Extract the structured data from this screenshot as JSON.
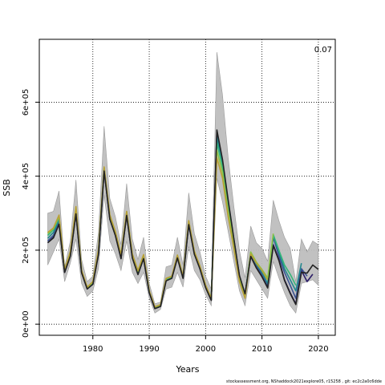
{
  "chart_data": {
    "type": "line",
    "title": "",
    "xlabel": "Years",
    "ylabel": "SSB",
    "annotation": "0.07",
    "xlim": [
      1970.5,
      2023
    ],
    "ylim": [
      -30000,
      770000
    ],
    "x_ticks": [
      1980,
      1990,
      2000,
      2010,
      2020
    ],
    "y_ticks": [
      0,
      200000,
      400000,
      600000
    ],
    "y_tick_labels": [
      "0e+00",
      "2e+05",
      "4e+05",
      "6e+05"
    ],
    "grid": true,
    "band": {
      "color": "#bebebe",
      "x": [
        1972,
        1973,
        1974,
        1975,
        1976,
        1977,
        1978,
        1979,
        1980,
        1981,
        1982,
        1983,
        1984,
        1985,
        1986,
        1987,
        1988,
        1989,
        1990,
        1991,
        1992,
        1993,
        1994,
        1995,
        1996,
        1997,
        1998,
        1999,
        2000,
        2001,
        2002,
        2003,
        2004,
        2005,
        2006,
        2007,
        2008,
        2009,
        2010,
        2011,
        2012,
        2013,
        2014,
        2015,
        2016,
        2017,
        2018,
        2019,
        2020
      ],
      "upper": [
        300000,
        305000,
        360000,
        155000,
        225000,
        390000,
        175000,
        115000,
        130000,
        250000,
        535000,
        340000,
        290000,
        215000,
        380000,
        230000,
        175000,
        235000,
        110000,
        55000,
        60000,
        155000,
        160000,
        235000,
        160000,
        355000,
        245000,
        195000,
        130000,
        95000,
        735000,
        620000,
        450000,
        320000,
        200000,
        125000,
        265000,
        220000,
        205000,
        170000,
        335000,
        280000,
        235000,
        205000,
        115000,
        230000,
        195000,
        225000,
        215000
      ],
      "lower": [
        160000,
        195000,
        230000,
        115000,
        165000,
        230000,
        110000,
        75000,
        90000,
        150000,
        350000,
        225000,
        190000,
        145000,
        225000,
        140000,
        110000,
        140000,
        70000,
        30000,
        40000,
        95000,
        100000,
        140000,
        100000,
        210000,
        145000,
        120000,
        80000,
        50000,
        395000,
        330000,
        250000,
        170000,
        90000,
        50000,
        145000,
        120000,
        95000,
        70000,
        170000,
        125000,
        85000,
        50000,
        30000,
        110000,
        115000,
        120000,
        105000
      ]
    },
    "series": [
      {
        "color": "#2a1c67",
        "x": [
          1972,
          1973,
          1974,
          1975,
          1976,
          1977,
          1978,
          1979,
          1980,
          1981,
          1982,
          1983,
          1984,
          1985,
          1986,
          1987,
          1988,
          1989,
          1990,
          1991,
          1992,
          1993,
          1994,
          1995,
          1996,
          1997,
          1998,
          1999,
          2000,
          2001,
          2002,
          2003,
          2004,
          2005,
          2006,
          2007,
          2008,
          2009,
          2010,
          2011,
          2012,
          2013,
          2014,
          2015,
          2016,
          2017,
          2018,
          2019
        ],
        "values": [
          220000,
          235000,
          275000,
          140000,
          185000,
          300000,
          140000,
          95000,
          108000,
          190000,
          415000,
          285000,
          240000,
          178000,
          295000,
          180000,
          135000,
          178000,
          85000,
          42000,
          48000,
          118000,
          125000,
          180000,
          125000,
          270000,
          190000,
          150000,
          100000,
          65000,
          520000,
          440000,
          330000,
          230000,
          130000,
          80000,
          185000,
          155000,
          130000,
          100000,
          215000,
          175000,
          120000,
          85000,
          55000,
          145000,
          115000,
          135000
        ]
      },
      {
        "color": "#3b5291",
        "x": [
          1972,
          1973,
          1974,
          1975,
          1976,
          1977,
          1978,
          1979,
          1980,
          1981,
          1982,
          1983,
          1984,
          1985,
          1986,
          1987,
          1988,
          1989,
          1990,
          1991,
          1992,
          1993,
          1994,
          1995,
          1996,
          1997,
          1998,
          1999,
          2000,
          2001,
          2002,
          2003,
          2004,
          2005,
          2006,
          2007,
          2008,
          2009,
          2010,
          2011,
          2012,
          2013,
          2014,
          2015,
          2016,
          2017,
          2018
        ],
        "values": [
          225000,
          240000,
          278000,
          142000,
          188000,
          303000,
          142000,
          96000,
          110000,
          192000,
          418000,
          288000,
          242000,
          180000,
          297000,
          182000,
          137000,
          180000,
          86000,
          43000,
          49000,
          120000,
          126000,
          182000,
          126000,
          272000,
          192000,
          152000,
          102000,
          66000,
          505000,
          435000,
          325000,
          228000,
          130000,
          80000,
          188000,
          158000,
          135000,
          105000,
          235000,
          185000,
          140000,
          105000,
          70000,
          150000,
          130000
        ]
      },
      {
        "color": "#22888e",
        "x": [
          1972,
          1973,
          1974,
          1975,
          1976,
          1977,
          1978,
          1979,
          1980,
          1981,
          1982,
          1983,
          1984,
          1985,
          1986,
          1987,
          1988,
          1989,
          1990,
          1991,
          1992,
          1993,
          1994,
          1995,
          1996,
          1997,
          1998,
          1999,
          2000,
          2001,
          2002,
          2003,
          2004,
          2005,
          2006,
          2007,
          2008,
          2009,
          2010,
          2011,
          2012,
          2013,
          2014,
          2015,
          2016,
          2017
        ],
        "values": [
          232000,
          248000,
          282000,
          144000,
          190000,
          306000,
          143000,
          97000,
          112000,
          195000,
          420000,
          290000,
          245000,
          182000,
          300000,
          184000,
          139000,
          182000,
          87000,
          44000,
          50000,
          121000,
          127000,
          184000,
          127000,
          275000,
          194000,
          154000,
          103000,
          67000,
          505000,
          430000,
          320000,
          225000,
          128000,
          78000,
          192000,
          162000,
          140000,
          110000,
          240000,
          195000,
          150000,
          120000,
          90000,
          165000
        ]
      },
      {
        "color": "#35b779",
        "x": [
          1972,
          1973,
          1974,
          1975,
          1976,
          1977,
          1978,
          1979,
          1980,
          1981,
          1982,
          1983,
          1984,
          1985,
          1986,
          1987,
          1988,
          1989,
          1990,
          1991,
          1992,
          1993,
          1994,
          1995,
          1996,
          1997,
          1998,
          1999,
          2000,
          2001,
          2002,
          2003,
          2004,
          2005,
          2006,
          2007,
          2008,
          2009,
          2010,
          2011,
          2012,
          2013,
          2014,
          2015,
          2016
        ],
        "values": [
          240000,
          255000,
          288000,
          145000,
          193000,
          310000,
          144000,
          98000,
          113000,
          198000,
          422000,
          292000,
          247000,
          184000,
          302000,
          186000,
          141000,
          184000,
          88000,
          45000,
          51000,
          122000,
          128000,
          185000,
          128000,
          276000,
          195000,
          155000,
          104000,
          68000,
          490000,
          425000,
          315000,
          222000,
          125000,
          76000,
          194000,
          165000,
          145000,
          120000,
          242000,
          200000,
          160000,
          135000,
          105000
        ]
      },
      {
        "color": "#8fc244",
        "x": [
          1972,
          1973,
          1974,
          1975,
          1976,
          1977,
          1978,
          1979,
          1980,
          1981,
          1982,
          1983,
          1984,
          1985,
          1986,
          1987,
          1988,
          1989,
          1990,
          1991,
          1992,
          1993,
          1994,
          1995,
          1996,
          1997,
          1998,
          1999,
          2000,
          2001,
          2002,
          2003,
          2004,
          2005,
          2006,
          2007,
          2008,
          2009,
          2010,
          2011,
          2012
        ],
        "values": [
          245000,
          258000,
          292000,
          146000,
          195000,
          315000,
          145000,
          99000,
          114000,
          200000,
          424000,
          294000,
          249000,
          186000,
          304000,
          188000,
          143000,
          186000,
          89000,
          46000,
          52000,
          123000,
          129000,
          186000,
          129000,
          278000,
          196000,
          156000,
          105000,
          69000,
          470000,
          410000,
          305000,
          215000,
          120000,
          73000,
          195000,
          168000,
          148000,
          125000,
          245000
        ]
      },
      {
        "color": "#b8a136",
        "x": [
          1972,
          1973,
          1974,
          1975,
          1976,
          1977,
          1978,
          1979,
          1980,
          1981,
          1982,
          1983,
          1984,
          1985,
          1986,
          1987,
          1988,
          1989,
          1990,
          1991,
          1992,
          1993,
          1994,
          1995,
          1996,
          1997,
          1998,
          1999,
          2000,
          2001,
          2002,
          2003,
          2004,
          2005,
          2006,
          2007,
          2008,
          2009,
          2010,
          2011
        ],
        "values": [
          248000,
          260000,
          295000,
          147000,
          197000,
          318000,
          146000,
          100000,
          115000,
          202000,
          425000,
          296000,
          250000,
          188000,
          305000,
          190000,
          145000,
          188000,
          90000,
          47000,
          53000,
          124000,
          130000,
          187000,
          130000,
          280000,
          197000,
          157000,
          106000,
          70000,
          450000,
          395000,
          290000,
          205000,
          115000,
          70000,
          190000,
          165000,
          145000,
          120000
        ]
      },
      {
        "color": "#222222",
        "x": [
          1972,
          1973,
          1974,
          1975,
          1976,
          1977,
          1978,
          1979,
          1980,
          1981,
          1982,
          1983,
          1984,
          1985,
          1986,
          1987,
          1988,
          1989,
          1990,
          1991,
          1992,
          1993,
          1994,
          1995,
          1996,
          1997,
          1998,
          1999,
          2000,
          2001,
          2002,
          2003,
          2004,
          2005,
          2006,
          2007,
          2008,
          2009,
          2010,
          2011,
          2012,
          2013,
          2014,
          2015,
          2016,
          2017,
          2018,
          2019,
          2020
        ],
        "values": [
          220000,
          233000,
          270000,
          140000,
          184000,
          298000,
          139000,
          95000,
          108000,
          189000,
          414000,
          284000,
          239000,
          177000,
          294000,
          179000,
          134000,
          177000,
          85000,
          42000,
          48000,
          117000,
          124000,
          179000,
          124000,
          269000,
          189000,
          149000,
          99000,
          64000,
          525000,
          445000,
          335000,
          232000,
          132000,
          82000,
          183000,
          152000,
          128000,
          98000,
          212000,
          172000,
          118000,
          83000,
          53000,
          140000,
          138000,
          160000,
          148000
        ]
      }
    ]
  },
  "footer": "stockassessment.org,  NShaddock2021explore05,  r15258 ,  git:  ec2c2a0c6dde"
}
